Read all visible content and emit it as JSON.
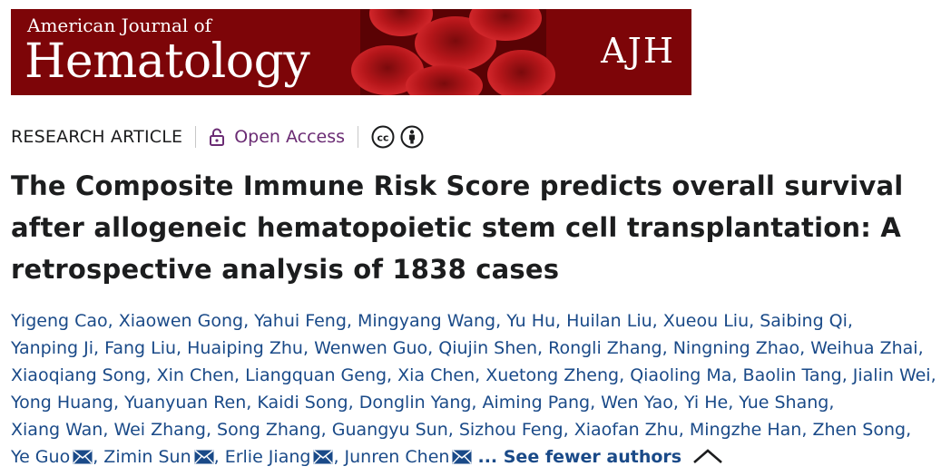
{
  "banner": {
    "journal_small": "American Journal of",
    "journal_big": "Hematology",
    "abbrev": "AJH"
  },
  "meta": {
    "article_type": "RESEARCH ARTICLE",
    "access": "Open Access",
    "license_icons": [
      "cc-icon",
      "by-attribution-icon"
    ]
  },
  "title": "The Composite Immune Risk Score predicts overall survival after allogeneic hematopoietic stem cell transplantation: A retrospective analysis of 1838 cases",
  "authors": {
    "lines": [
      [
        {
          "name": "Yigeng Cao",
          "sep": ", "
        },
        {
          "name": "Xiaowen Gong",
          "sep": ", "
        },
        {
          "name": "Yahui Feng",
          "sep": ", "
        },
        {
          "name": "Mingyang Wang",
          "sep": ", "
        },
        {
          "name": "Yu Hu",
          "sep": ", "
        },
        {
          "name": "Huilan Liu",
          "sep": ", "
        },
        {
          "name": "Xueou Liu",
          "sep": ", "
        },
        {
          "name": "Saibing Qi",
          "sep": ","
        }
      ],
      [
        {
          "name": "Yanping Ji",
          "sep": ", "
        },
        {
          "name": "Fang Liu",
          "sep": ", "
        },
        {
          "name": "Huaiping Zhu",
          "sep": ", "
        },
        {
          "name": "Wenwen Guo",
          "sep": ", "
        },
        {
          "name": "Qiujin Shen",
          "sep": ", "
        },
        {
          "name": "Rongli Zhang",
          "sep": ", "
        },
        {
          "name": "Ningning Zhao",
          "sep": ", "
        },
        {
          "name": "Weihua Zhai",
          "sep": ","
        }
      ],
      [
        {
          "name": "Xiaoqiang Song",
          "sep": ", "
        },
        {
          "name": "Xin Chen",
          "sep": ", "
        },
        {
          "name": "Liangquan Geng",
          "sep": ", "
        },
        {
          "name": "Xia Chen",
          "sep": ", "
        },
        {
          "name": "Xuetong Zheng",
          "sep": ", "
        },
        {
          "name": "Qiaoling Ma",
          "sep": ", "
        },
        {
          "name": "Baolin Tang",
          "sep": ", "
        },
        {
          "name": "Jialin Wei",
          "sep": ","
        }
      ],
      [
        {
          "name": "Yong Huang",
          "sep": ", "
        },
        {
          "name": "Yuanyuan Ren",
          "sep": ", "
        },
        {
          "name": "Kaidi Song",
          "sep": ", "
        },
        {
          "name": "Donglin Yang",
          "sep": ", "
        },
        {
          "name": "Aiming Pang",
          "sep": ", "
        },
        {
          "name": "Wen Yao",
          "sep": ", "
        },
        {
          "name": "Yi He",
          "sep": ", "
        },
        {
          "name": "Yue Shang",
          "sep": ","
        }
      ],
      [
        {
          "name": "Xiang Wan",
          "sep": ", "
        },
        {
          "name": "Wei Zhang",
          "sep": ", "
        },
        {
          "name": "Song Zhang",
          "sep": ", "
        },
        {
          "name": "Guangyu Sun",
          "sep": ", "
        },
        {
          "name": "Sizhou Feng",
          "sep": ", "
        },
        {
          "name": "Xiaofan Zhu",
          "sep": ", "
        },
        {
          "name": "Mingzhe Han",
          "sep": ", "
        },
        {
          "name": "Zhen Song",
          "sep": ","
        }
      ],
      [
        {
          "name": "Ye Guo",
          "sep": ", ",
          "email": true
        },
        {
          "name": "Zimin Sun",
          "sep": ", ",
          "email": true
        },
        {
          "name": "Erlie Jiang",
          "sep": ", ",
          "email": true
        },
        {
          "name": "Junren Chen",
          "sep": "",
          "email": true
        }
      ]
    ],
    "see_fewer": "... See fewer authors"
  }
}
